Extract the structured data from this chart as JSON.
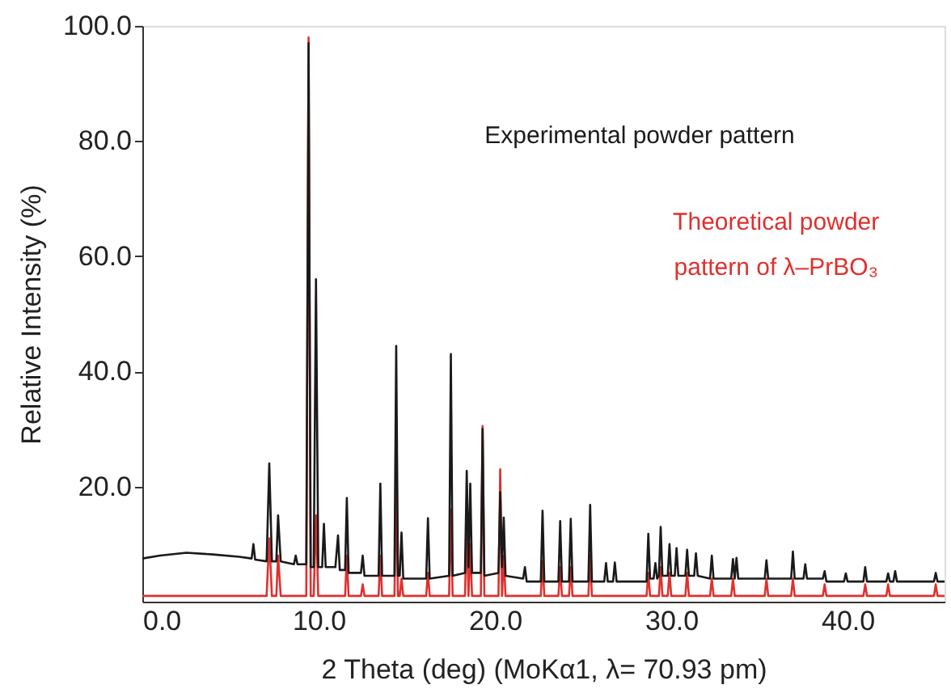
{
  "chart_data": {
    "type": "line",
    "xlabel": "2 Theta (deg)    (MoKα1, λ= 70.93 pm)",
    "ylabel": "Relative Intensity (%)",
    "xlim": [
      0,
      45.5
    ],
    "ylim": [
      0,
      100
    ],
    "xticks": [
      {
        "value": 0,
        "label": "0.0"
      },
      {
        "value": 10,
        "label": "10.0"
      },
      {
        "value": 20,
        "label": "20.0"
      },
      {
        "value": 30,
        "label": "30.0"
      },
      {
        "value": 40,
        "label": "40.0"
      }
    ],
    "yticks": [
      {
        "value": 20,
        "label": "20.0"
      },
      {
        "value": 40,
        "label": "40.0"
      },
      {
        "value": 60,
        "label": "60.0"
      },
      {
        "value": 80,
        "label": "80.0"
      },
      {
        "value": 100,
        "label": "100.0"
      }
    ],
    "grid": false,
    "marker": "none",
    "line_style": "solid",
    "series": [
      {
        "name": "Experimental powder pattern",
        "color": "#1a1a1a",
        "x": [
          0,
          1,
          2.5,
          4,
          5.5,
          6.2,
          6.3,
          6.4,
          7.05,
          7.2,
          7.35,
          7.6,
          7.7,
          7.85,
          8.6,
          8.7,
          8.8,
          9.3,
          9.43,
          9.55,
          9.72,
          9.85,
          9.98,
          10.2,
          10.3,
          10.4,
          10.95,
          11.1,
          11.2,
          11.5,
          11.6,
          11.7,
          12.4,
          12.5,
          12.6,
          13.4,
          13.5,
          13.6,
          14.3,
          14.4,
          14.5,
          14.6,
          14.7,
          14.8,
          16.1,
          16.2,
          16.3,
          17.4,
          17.5,
          17.6,
          18.3,
          18.4,
          18.5,
          18.6,
          18.7,
          19.2,
          19.3,
          19.4,
          20.2,
          20.3,
          20.4,
          20.5,
          20.6,
          21.6,
          21.7,
          21.8,
          22.6,
          22.7,
          22.8,
          23.6,
          23.7,
          23.8,
          24.2,
          24.3,
          24.4,
          25.3,
          25.4,
          25.5,
          26.2,
          26.3,
          26.4,
          26.7,
          26.8,
          26.9,
          28.6,
          28.7,
          28.8,
          29.0,
          29.1,
          29.2,
          29.3,
          29.4,
          29.5,
          29.8,
          29.9,
          30.0,
          30.2,
          30.3,
          30.4,
          30.8,
          30.9,
          31.0,
          31.3,
          31.4,
          31.5,
          32.2,
          32.3,
          32.4,
          33.4,
          33.5,
          33.6,
          33.7,
          33.8,
          35.3,
          35.4,
          35.5,
          36.8,
          36.9,
          37.0,
          37.5,
          37.6,
          37.7,
          38.6,
          38.7,
          38.8,
          39.8,
          39.9,
          40.0,
          40.9,
          41.0,
          41.1,
          42.2,
          42.3,
          42.4,
          42.6,
          42.7,
          42.8,
          44.9,
          45.0,
          45.1,
          45.5
        ],
        "values": [
          7.5,
          8,
          8.5,
          8.2,
          7.8,
          7.5,
          10,
          7.3,
          7,
          24,
          7,
          7,
          15,
          7,
          6.5,
          8,
          6.5,
          6.5,
          97,
          6,
          6,
          56,
          6,
          6,
          13.5,
          6,
          6,
          11.5,
          5.5,
          5.5,
          18,
          5,
          5,
          8,
          4.5,
          4.5,
          20.5,
          4.5,
          4.5,
          44.4,
          4.5,
          4.5,
          12,
          4,
          4,
          14.5,
          4,
          4.5,
          43,
          4.5,
          5,
          22.7,
          6,
          20.5,
          5,
          5,
          30,
          4.5,
          5,
          19,
          6,
          14.6,
          4.5,
          4,
          6,
          3.5,
          3.5,
          15.8,
          3.5,
          3.5,
          14,
          3.5,
          3.5,
          14.4,
          3.5,
          3.5,
          16.8,
          3.5,
          3.5,
          6.7,
          3.5,
          3.5,
          6.8,
          3.5,
          3.5,
          11.8,
          4,
          4,
          6.7,
          4,
          4.5,
          13,
          4.5,
          4.5,
          10,
          4.5,
          4.5,
          9.3,
          4.5,
          4.5,
          9,
          4.5,
          4.5,
          8.4,
          4.5,
          4,
          8,
          4,
          4,
          7.4,
          4,
          7.6,
          4,
          4,
          7.2,
          4,
          4,
          8.7,
          4,
          4,
          6.5,
          4,
          4,
          5.3,
          3.5,
          3.5,
          4.9,
          3.5,
          3.5,
          6,
          3.5,
          3.5,
          4.9,
          3.5,
          3.5,
          5.3,
          3.5,
          3.5,
          5,
          3.5,
          3.5
        ]
      },
      {
        "name": "Theoretical powder pattern of λ–PrBO₃",
        "color": "#e0302e",
        "x": [
          0,
          7.05,
          7.2,
          7.35,
          7.6,
          7.7,
          7.85,
          9.3,
          9.43,
          9.55,
          9.72,
          9.85,
          9.98,
          11.5,
          11.6,
          11.7,
          12.4,
          12.5,
          12.6,
          13.4,
          13.5,
          13.6,
          14.3,
          14.4,
          14.5,
          14.6,
          14.7,
          14.8,
          16.1,
          16.2,
          16.3,
          17.4,
          17.5,
          17.6,
          18.3,
          18.4,
          18.5,
          18.6,
          18.7,
          19.2,
          19.3,
          19.4,
          20.2,
          20.3,
          20.4,
          20.5,
          20.6,
          22.6,
          22.7,
          22.8,
          23.6,
          23.7,
          23.8,
          24.2,
          24.3,
          24.4,
          25.3,
          25.4,
          25.5,
          28.6,
          28.7,
          28.8,
          29.3,
          29.4,
          29.5,
          29.8,
          29.9,
          30.0,
          30.8,
          30.9,
          31.0,
          32.2,
          32.3,
          32.4,
          33.4,
          33.5,
          33.6,
          35.3,
          35.4,
          35.5,
          36.8,
          36.9,
          37.0,
          38.6,
          38.7,
          38.8,
          40.9,
          41.0,
          41.1,
          42.2,
          42.3,
          42.4,
          44.9,
          45.0,
          45.1,
          45.5
        ],
        "values": [
          1,
          1,
          11,
          1,
          1,
          8,
          1,
          1,
          98,
          1,
          1,
          15,
          1,
          1,
          8,
          1,
          1,
          3,
          1,
          1,
          8,
          1,
          1,
          20,
          1,
          1,
          4,
          1,
          1,
          5,
          1,
          1,
          16,
          1,
          1,
          13,
          1,
          10,
          1,
          1,
          30.5,
          1,
          1,
          23,
          1,
          8,
          1,
          1,
          7,
          1,
          1,
          6,
          1,
          1,
          6,
          1,
          1,
          8,
          1,
          1,
          5,
          1,
          1,
          6,
          1,
          1,
          5,
          1,
          1,
          5,
          1,
          1,
          4,
          1,
          1,
          4,
          1,
          1,
          4,
          1,
          1,
          4,
          1,
          1,
          3,
          1,
          1,
          3,
          1,
          1,
          3,
          1,
          1,
          3,
          1,
          1
        ]
      }
    ]
  }
}
